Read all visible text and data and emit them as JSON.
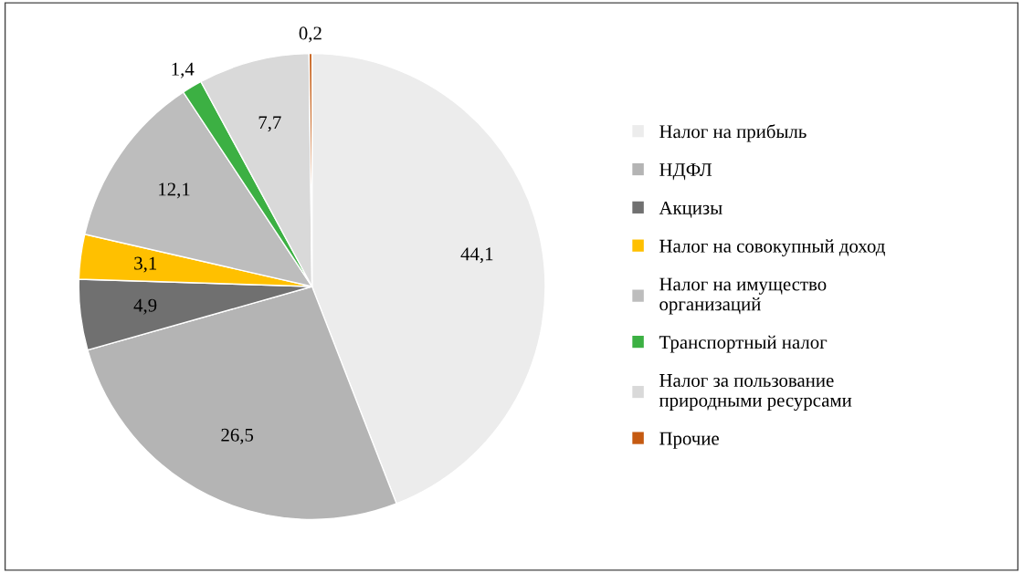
{
  "chart_data": {
    "type": "pie",
    "categories": [
      "Налог на прибыль",
      "НДФЛ",
      "Акцизы",
      "Налог на совокупный доход",
      "Налог на имущество\nорганизаций",
      "Транспортный налог",
      "Налог за пользование\nприродными ресурсами",
      "Прочие"
    ],
    "values": [
      44.1,
      26.5,
      4.9,
      3.1,
      12.1,
      1.4,
      7.7,
      0.2
    ],
    "colors": [
      "#ececec",
      "#b4b4b4",
      "#707070",
      "#ffc000",
      "#bdbdbd",
      "#3cb043",
      "#d9d9d9",
      "#c55a11"
    ],
    "value_labels": [
      "44,1",
      "26,5",
      "4,9",
      "3,1",
      "12,1",
      "1,4",
      "7,7",
      "0,2"
    ],
    "legend": "right"
  }
}
